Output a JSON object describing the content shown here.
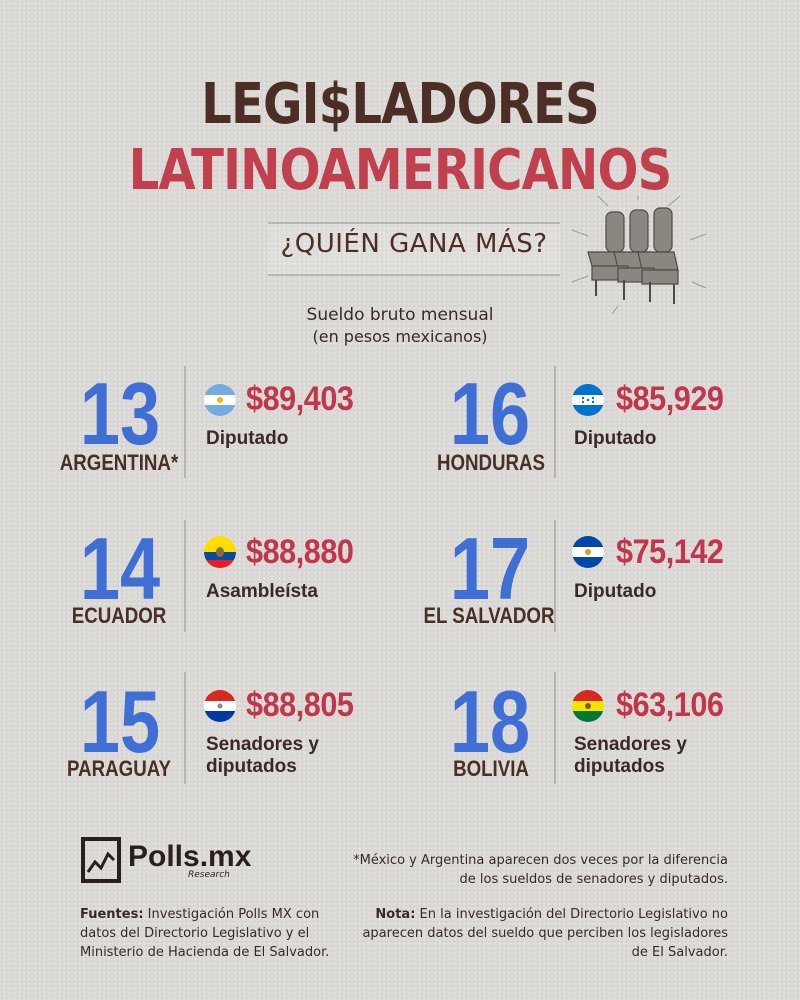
{
  "header": {
    "title_line1": "LEGI$LADORES",
    "title_line2": "LATINOAMERICANOS",
    "subtitle": "¿QUIÉN GANA MÁS?"
  },
  "intro": {
    "line1": "Sueldo bruto mensual",
    "line2": "(en pesos mexicanos)"
  },
  "entries": [
    {
      "rank": "13",
      "country": "ARGENTINA*",
      "amount": "$89,403",
      "role": "Diputado",
      "flag": "argentina-flag-icon"
    },
    {
      "rank": "16",
      "country": "HONDURAS",
      "amount": "$85,929",
      "role": "Diputado",
      "flag": "honduras-flag-icon"
    },
    {
      "rank": "14",
      "country": "ECUADOR",
      "amount": "$88,880",
      "role": "Asambleísta",
      "flag": "ecuador-flag-icon"
    },
    {
      "rank": "17",
      "country": "EL SALVADOR",
      "amount": "$75,142",
      "role": "Diputado",
      "flag": "el-salvador-flag-icon"
    },
    {
      "rank": "15",
      "country": "PARAGUAY",
      "amount": "$88,805",
      "role": "Senadores y diputados",
      "flag": "paraguay-flag-icon"
    },
    {
      "rank": "18",
      "country": "BOLIVIA",
      "amount": "$63,106",
      "role": "Senadores y diputados",
      "flag": "bolivia-flag-icon"
    }
  ],
  "footer": {
    "logo_text": "Polls.mx",
    "logo_sub": "Research",
    "asterisk_note": "*México y Argentina aparecen dos veces por la diferencia de los sueldos de senadores y diputados.",
    "fuentes_label": "Fuentes:",
    "fuentes_text": "Investigación Polls MX con datos del Directorio Legislativo y el Ministerio de Hacienda de El Salvador.",
    "nota_label": "Nota:",
    "nota_text": "En la investigación del Directorio Legislativo no aparecen datos del sueldo que perciben los legisladores de El Salvador."
  },
  "colors": {
    "title_brown": "#4d2e27",
    "title_red": "#c0414d",
    "rank_blue": "#3f6fd4",
    "amount_red": "#c0364a",
    "background": "#dcdad6"
  }
}
